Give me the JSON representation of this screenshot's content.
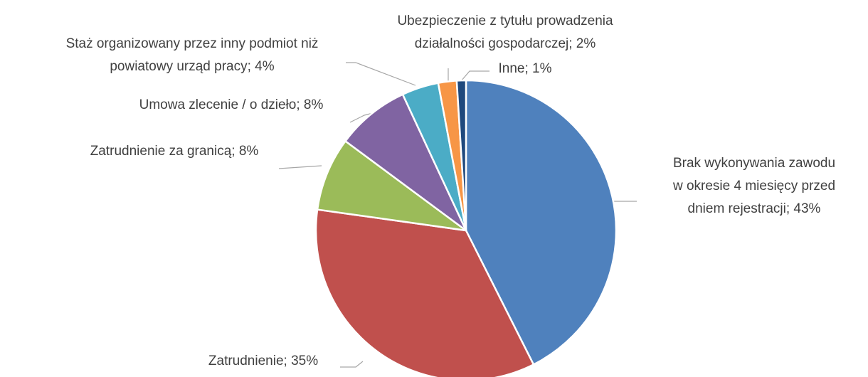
{
  "chart_data": {
    "type": "pie",
    "categories": [
      "Brak wykonywania zawodu w okresie 4 miesięcy przed dniem rejestracji",
      "Zatrudnienie",
      "Zatrudnienie za granicą",
      "Umowa zlecenie / o dzieło",
      "Staż organizowany przez inny podmiot niż powiatowy urząd pracy",
      "Ubezpieczenie z tytułu prowadzenia działalności gospodarczej",
      "Inne"
    ],
    "values": [
      43,
      35,
      8,
      8,
      4,
      2,
      1
    ],
    "value_labels": [
      [
        "Brak wykonywania zawodu",
        "w okresie 4 miesięcy przed",
        "dniem rejestracji; 43%"
      ],
      [
        "Zatrudnienie; 35%"
      ],
      [
        "Zatrudnienie za granicą; 8%"
      ],
      [
        "Umowa zlecenie / o dzieło; 8%"
      ],
      [
        "Staż organizowany przez inny podmiot niż",
        "powiatowy urząd pracy; 4%"
      ],
      [
        "Ubezpieczenie z tytułu prowadzenia",
        "działalności gospodarczej; 2%"
      ],
      [
        "Inne; 1%"
      ]
    ],
    "colors": [
      "#4f81bd",
      "#c0504d",
      "#9bbb59",
      "#8064a2",
      "#4bacc6",
      "#f79646",
      "#1f497d"
    ]
  }
}
